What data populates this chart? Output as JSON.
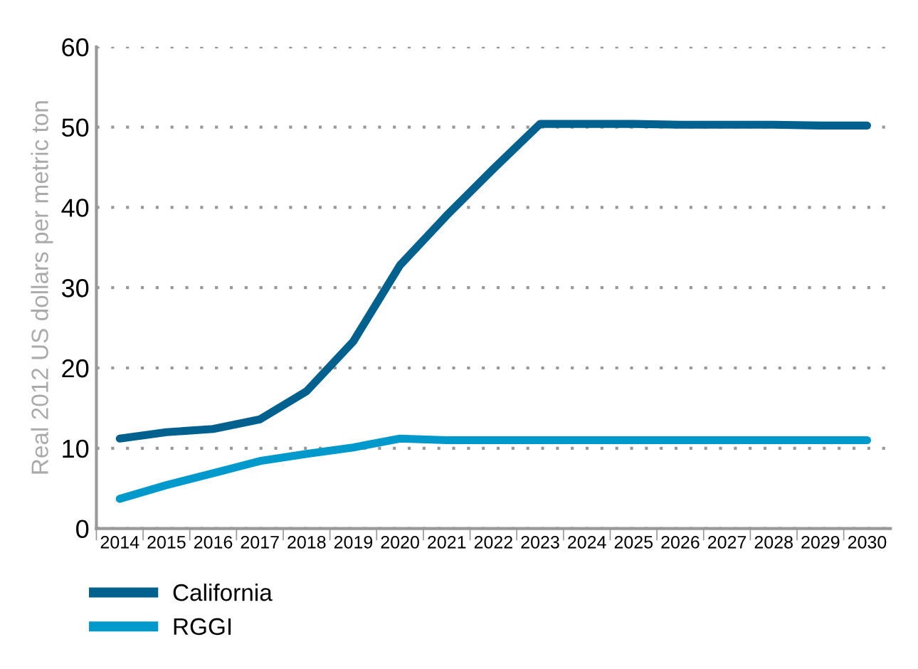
{
  "chart_data": {
    "type": "line",
    "ylabel": "Real 2012 US dollars per metric ton",
    "categories": [
      "2014",
      "2015",
      "2016",
      "2017",
      "2018",
      "2019",
      "2020",
      "2021",
      "2022",
      "2023",
      "2024",
      "2025",
      "2026",
      "2027",
      "2028",
      "2029",
      "2030"
    ],
    "series": [
      {
        "name": "California",
        "color": "#00618f",
        "values": [
          11.2,
          12.0,
          12.4,
          13.6,
          17.1,
          23.3,
          32.8,
          39.0,
          44.8,
          50.4,
          50.4,
          50.4,
          50.3,
          50.3,
          50.3,
          50.2,
          50.2
        ]
      },
      {
        "name": "RGGI",
        "color": "#0099cc",
        "values": [
          3.7,
          5.4,
          6.9,
          8.4,
          9.3,
          10.1,
          11.2,
          11.0,
          11.0,
          11.0,
          11.0,
          11.0,
          11.0,
          11.0,
          11.0,
          11.0,
          11.0
        ]
      }
    ],
    "ylim": [
      0,
      60
    ],
    "yticks": [
      0,
      10,
      20,
      30,
      40,
      50,
      60
    ],
    "grid": "y",
    "legend": "bottom left",
    "marker": "none",
    "line_style": "solid"
  }
}
